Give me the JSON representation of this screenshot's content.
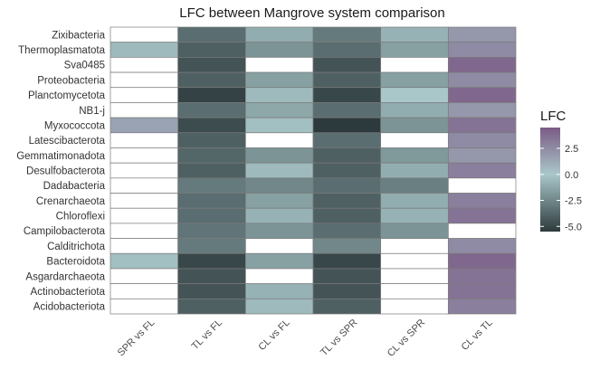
{
  "chart_data": {
    "type": "heatmap",
    "title": "LFC between Mangrove system comparison",
    "xlabel": "",
    "ylabel": "",
    "columns": [
      "SPR vs FL",
      "TL vs FL",
      "CL vs FL",
      "TL vs SPR",
      "CL vs SPR",
      "CL vs TL"
    ],
    "rows": [
      "Zixibacteria",
      "Thermoplasmatota",
      "Sva0485",
      "Proteobacteria",
      "Planctomycetota",
      "NB1-j",
      "Myxococcota",
      "Latescibacterota",
      "Gemmatimonadota",
      "Desulfobacterota",
      "Dadabacteria",
      "Crenarchaeota",
      "Chloroflexi",
      "Campilobacterota",
      "Calditrichota",
      "Bacteroidota",
      "Asgardarchaeota",
      "Actinobacteriota",
      "Acidobacteriota"
    ],
    "values": [
      [
        null,
        -3.5,
        -1.0,
        -3.0,
        -0.8,
        2.0
      ],
      [
        -0.5,
        -4.0,
        -2.0,
        -3.5,
        -1.5,
        2.5
      ],
      [
        null,
        -4.5,
        null,
        -4.5,
        null,
        4.0
      ],
      [
        null,
        -4.0,
        -1.5,
        -4.0,
        -1.5,
        2.5
      ],
      [
        null,
        -5.2,
        -0.5,
        -5.0,
        0.0,
        4.0
      ],
      [
        null,
        -3.5,
        -1.2,
        -3.5,
        -1.0,
        2.0
      ],
      [
        1.5,
        -4.8,
        -0.3,
        -5.5,
        -2.0,
        3.5
      ],
      [
        null,
        -4.0,
        null,
        -3.5,
        null,
        2.5
      ],
      [
        null,
        -3.8,
        -2.0,
        -4.0,
        -1.8,
        2.0
      ],
      [
        null,
        -4.0,
        -0.5,
        -4.0,
        -1.0,
        3.0
      ],
      [
        null,
        -3.0,
        -2.5,
        -3.5,
        -2.8,
        null
      ],
      [
        null,
        -3.5,
        -1.5,
        -4.0,
        -1.0,
        3.0
      ],
      [
        null,
        -3.5,
        -0.8,
        -4.0,
        -0.8,
        3.5
      ],
      [
        null,
        -3.2,
        -2.0,
        -3.5,
        -2.0,
        null
      ],
      [
        null,
        -3.0,
        null,
        -2.5,
        null,
        2.5
      ],
      [
        -0.3,
        -5.0,
        -1.5,
        -5.0,
        null,
        4.0
      ],
      [
        null,
        -4.5,
        null,
        -4.5,
        null,
        3.5
      ],
      [
        null,
        -4.5,
        -0.8,
        -4.5,
        null,
        3.5
      ],
      [
        null,
        -4.0,
        -0.5,
        -4.0,
        null,
        3.0
      ]
    ],
    "color_range": [
      -5.5,
      4.5
    ],
    "legend": {
      "title": "LFC",
      "ticks": [
        2.5,
        0.0,
        -2.5,
        -5.0
      ],
      "tick_labels": [
        "2.5",
        "0.0",
        "-2.5",
        "-5.0"
      ],
      "position": "right"
    },
    "colors": {
      "low": "#2d3a3d",
      "mid": "#a9c7c9",
      "high": "#7b5b86",
      "missing": "#ffffff",
      "cell_border": "#7a7a7a",
      "grid": "#ebebeb"
    }
  }
}
